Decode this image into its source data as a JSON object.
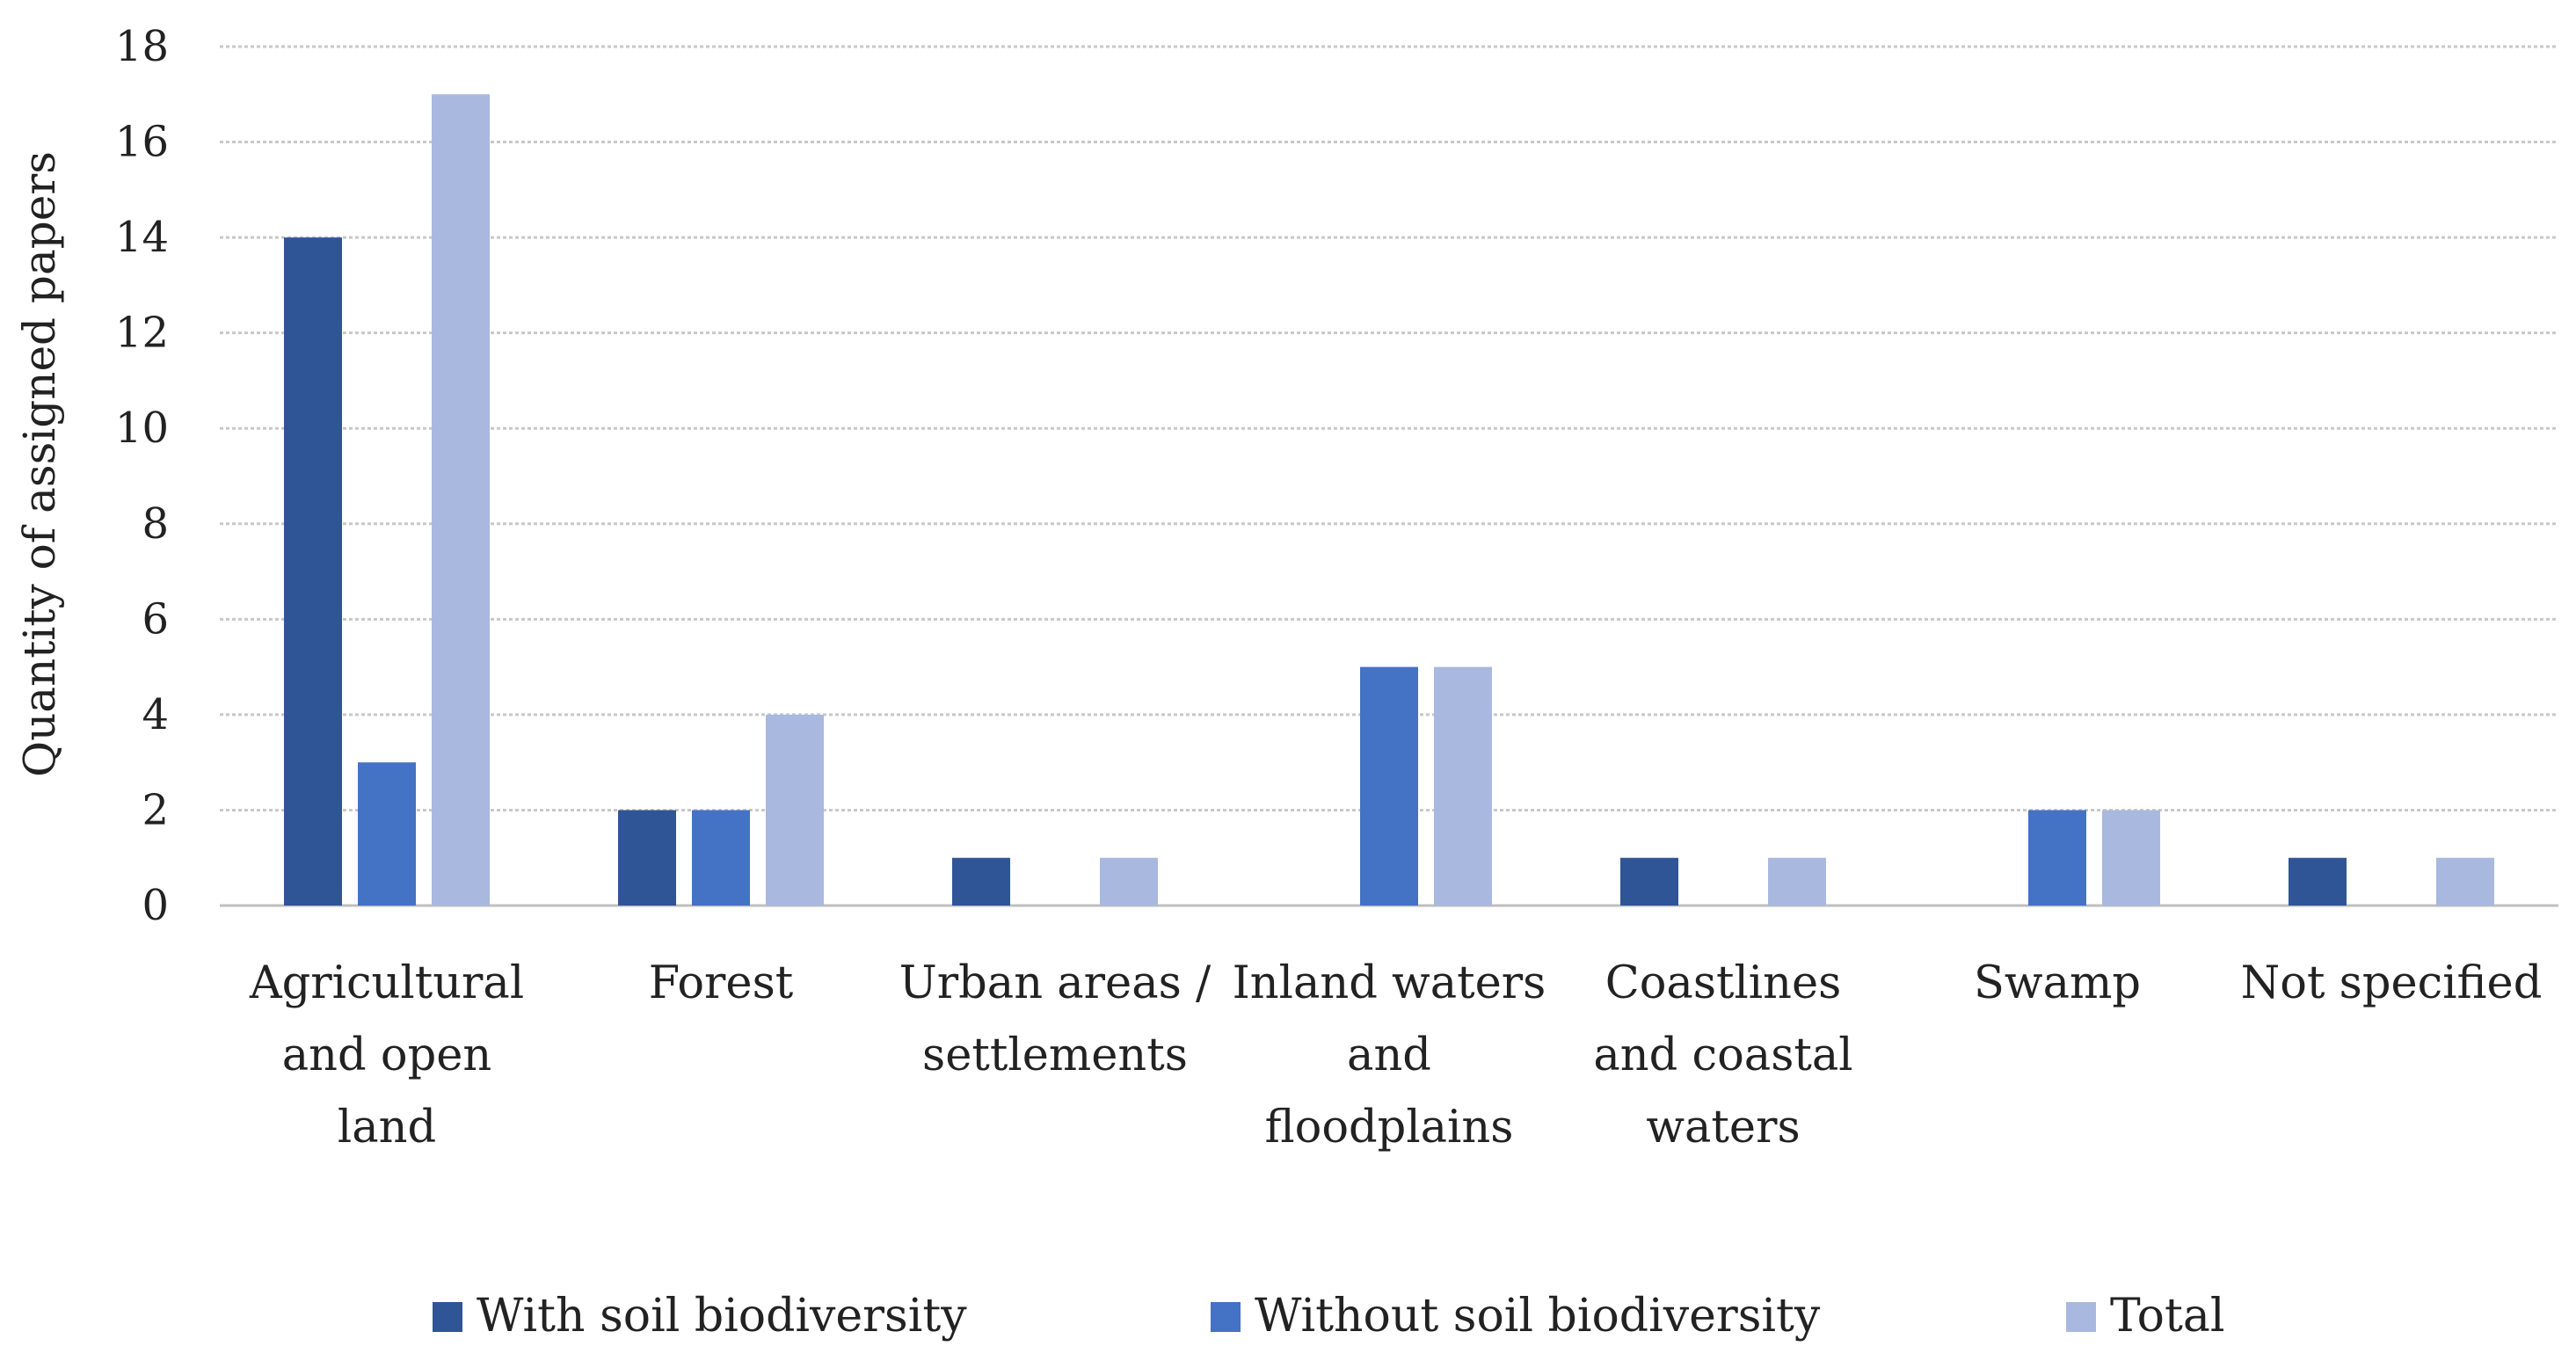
{
  "chart_data": {
    "type": "bar",
    "title": "",
    "xlabel": "",
    "ylabel": "Quantity of assigned papers",
    "ylim": [
      0,
      18
    ],
    "yticks": [
      0,
      2,
      4,
      6,
      8,
      10,
      12,
      14,
      16,
      18
    ],
    "grid": true,
    "legend_position": "bottom",
    "categories": [
      [
        "Agricultural",
        "and open",
        "land"
      ],
      [
        "Forest"
      ],
      [
        "Urban areas /",
        "settlements"
      ],
      [
        "Inland waters",
        "and",
        "floodplains"
      ],
      [
        "Coastlines",
        "and coastal",
        "waters"
      ],
      [
        "Swamp"
      ],
      [
        "Not specified"
      ]
    ],
    "series": [
      {
        "name": "With soil biodiversity",
        "color": "#2f5597",
        "values": [
          14,
          2,
          1,
          0,
          1,
          0,
          1
        ]
      },
      {
        "name": "Without soil biodiversity",
        "color": "#4472c4",
        "values": [
          3,
          2,
          0,
          5,
          0,
          2,
          0
        ]
      },
      {
        "name": "Total",
        "color": "#a9b8de",
        "values": [
          17,
          4,
          1,
          5,
          1,
          2,
          1
        ]
      }
    ]
  }
}
